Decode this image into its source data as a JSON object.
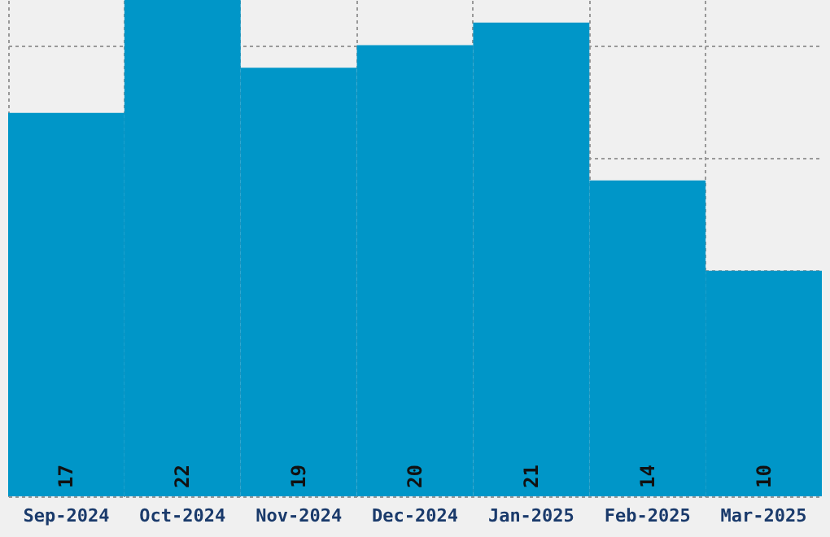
{
  "chart_data": {
    "type": "bar",
    "categories": [
      "Sep-2024",
      "Oct-2024",
      "Nov-2024",
      "Dec-2024",
      "Jan-2025",
      "Feb-2025",
      "Mar-2025"
    ],
    "values": [
      17,
      22,
      19,
      20,
      21,
      14,
      10
    ],
    "color": "#0096c8",
    "grid": true,
    "tick_labels": "x",
    "data_labels": true
  }
}
